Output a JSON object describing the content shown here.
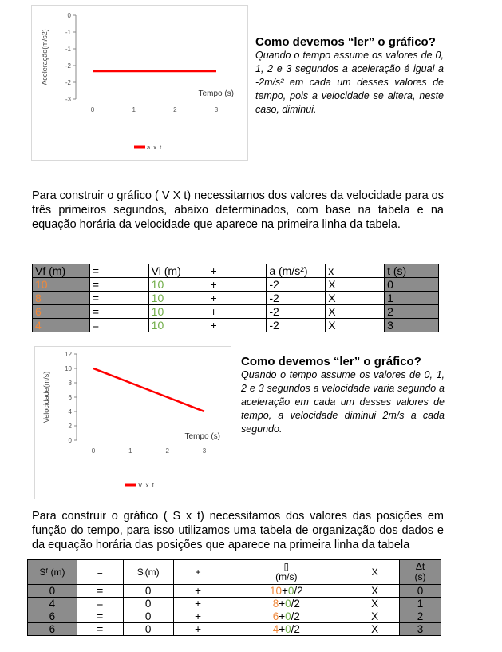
{
  "chart_data": [
    {
      "type": "line",
      "ylabel": "Aceleração(m/s2)",
      "xlabel": "Tempo (s)",
      "x": [
        0,
        1,
        2,
        3
      ],
      "series": [
        {
          "name": "a x t",
          "values": [
            -2,
            -2,
            -2,
            -2
          ],
          "color": "#ff0000"
        }
      ],
      "ylim": [
        -3,
        0
      ],
      "yticks": [
        "0",
        "-1",
        "-1",
        "-2",
        "-2",
        "-3"
      ],
      "xticks": [
        "0",
        "1",
        "2",
        "3"
      ],
      "legend": "bottom"
    },
    {
      "type": "line",
      "ylabel": "Velocidade(m/s)",
      "xlabel": "Tempo (s)",
      "x": [
        0,
        1,
        2,
        3
      ],
      "series": [
        {
          "name": "V x t",
          "values": [
            10,
            8,
            6,
            4
          ],
          "color": "#ff0000"
        }
      ],
      "ylim": [
        0,
        12
      ],
      "yticks": [
        "0",
        "2",
        "4",
        "6",
        "8",
        "10",
        "12"
      ],
      "xticks": [
        "0",
        "1",
        "2",
        "3"
      ],
      "legend": "bottom"
    }
  ],
  "explain1": {
    "heading": "Como devemos “ler” o gráfico?",
    "text": "Quando o tempo assume os valores de 0, 1, 2 e 3 segundos a aceleração é igual a -2m/s²  em cada um desses valores de tempo, pois a velocidade se altera, neste caso, diminui."
  },
  "para1": "Para construir o gráfico ( V X t) necessitamos dos valores da velocidade para os três primeiros segundos, abaixo determinados, com base na tabela e na equação horária da velocidade que aparece na primeira linha da tabela.",
  "table1": {
    "header": [
      "Vf (m)",
      "=",
      "Vi (m)",
      "+",
      "a (m/s²)",
      "x",
      "t (s)"
    ],
    "rows": [
      [
        "10",
        "=",
        "10",
        "+",
        "-2",
        "X",
        "0"
      ],
      [
        "8",
        "=",
        "10",
        "+",
        "-2",
        "X",
        "1"
      ],
      [
        "6",
        "=",
        "10",
        "+",
        "-2",
        "X",
        "2"
      ],
      [
        "4",
        "=",
        "10",
        "+",
        "-2",
        "X",
        "3"
      ]
    ]
  },
  "explain2": {
    "heading": "Como devemos “ler” o gráfico?",
    "text": "Quando o tempo assume os valores de 0, 1, 2 e 3 segundos a velocidade varia segundo a aceleração  em cada um desses valores de tempo, a velocidade diminui 2m/s a cada segundo."
  },
  "para2": "Para construir o gráfico ( S x t) necessitamos dos valores das posições em função do tempo, para isso utilizamos uma tabela de organização dos dados e da equação horária das posições que aparece na primeira linha da tabela",
  "table2": {
    "header": [
      "Sᶠ (m)",
      "=",
      "Sᵢ(m)",
      "+",
      "▯\n(m/s)",
      "X",
      "Δt\n(s)"
    ],
    "rows": [
      {
        "s": "0",
        "eq": "=",
        "si": "0",
        "plus": "+",
        "v": "10",
        "v0": "+0/2",
        "x": "X",
        "t": "0"
      },
      {
        "s": "4",
        "eq": "=",
        "si": "0",
        "plus": "+",
        "v": "8",
        "v0": "+0/2",
        "x": "X",
        "t": "1"
      },
      {
        "s": "6",
        "eq": "=",
        "si": "0",
        "plus": "+",
        "v": "6",
        "v0": "+0/2",
        "x": "X",
        "t": "2"
      },
      {
        "s": "6",
        "eq": "=",
        "si": "0",
        "plus": "+",
        "v": "4",
        "v0": "+0/2",
        "x": "X",
        "t": "3"
      }
    ]
  }
}
